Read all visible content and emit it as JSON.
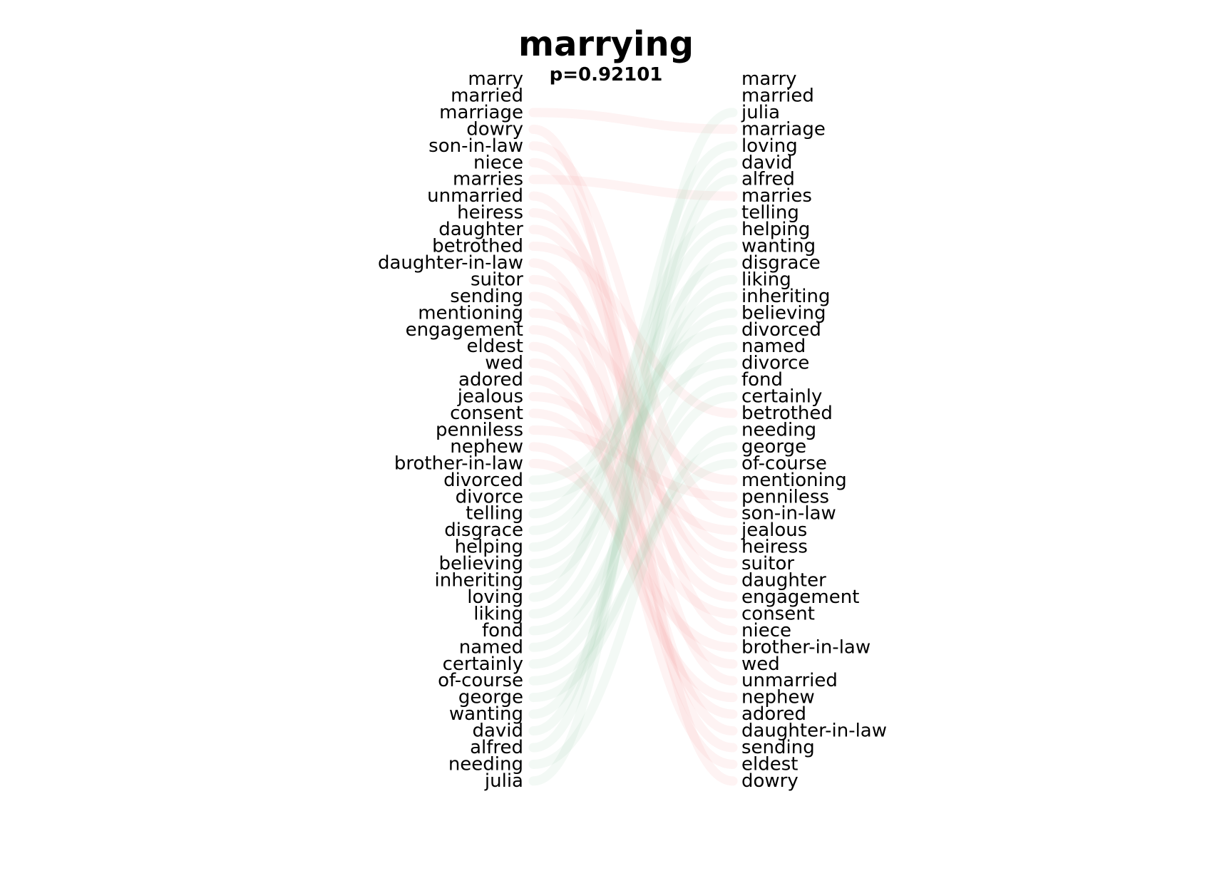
{
  "chart_data": {
    "type": "bump",
    "title": "marrying",
    "subtitle": "p=0.92101",
    "left_list": [
      "marry",
      "married",
      "marriage",
      "dowry",
      "son-in-law",
      "niece",
      "marries",
      "unmarried",
      "heiress",
      "daughter",
      "betrothed",
      "daughter-in-law",
      "suitor",
      "sending",
      "mentioning",
      "engagement",
      "eldest",
      "wed",
      "adored",
      "jealous",
      "consent",
      "penniless",
      "nephew",
      "brother-in-law",
      "divorced",
      "divorce",
      "telling",
      "disgrace",
      "helping",
      "believing",
      "inheriting",
      "loving",
      "liking",
      "fond",
      "named",
      "certainly",
      "of-course",
      "george",
      "wanting",
      "david",
      "alfred",
      "needing",
      "julia"
    ],
    "right_list": [
      "marry",
      "married",
      "julia",
      "marriage",
      "loving",
      "david",
      "alfred",
      "marries",
      "telling",
      "helping",
      "wanting",
      "disgrace",
      "liking",
      "inheriting",
      "believing",
      "divorced",
      "named",
      "divorce",
      "fond",
      "certainly",
      "betrothed",
      "needing",
      "george",
      "of-course",
      "mentioning",
      "penniless",
      "son-in-law",
      "jealous",
      "heiress",
      "suitor",
      "daughter",
      "engagement",
      "consent",
      "niece",
      "brother-in-law",
      "wed",
      "unmarried",
      "nephew",
      "adored",
      "daughter-in-law",
      "sending",
      "eldest",
      "dowry"
    ],
    "colors": {
      "left_link": "#f4a3a3",
      "right_link": "#9fd3b2",
      "mid_link": "#f3f0b0"
    }
  }
}
